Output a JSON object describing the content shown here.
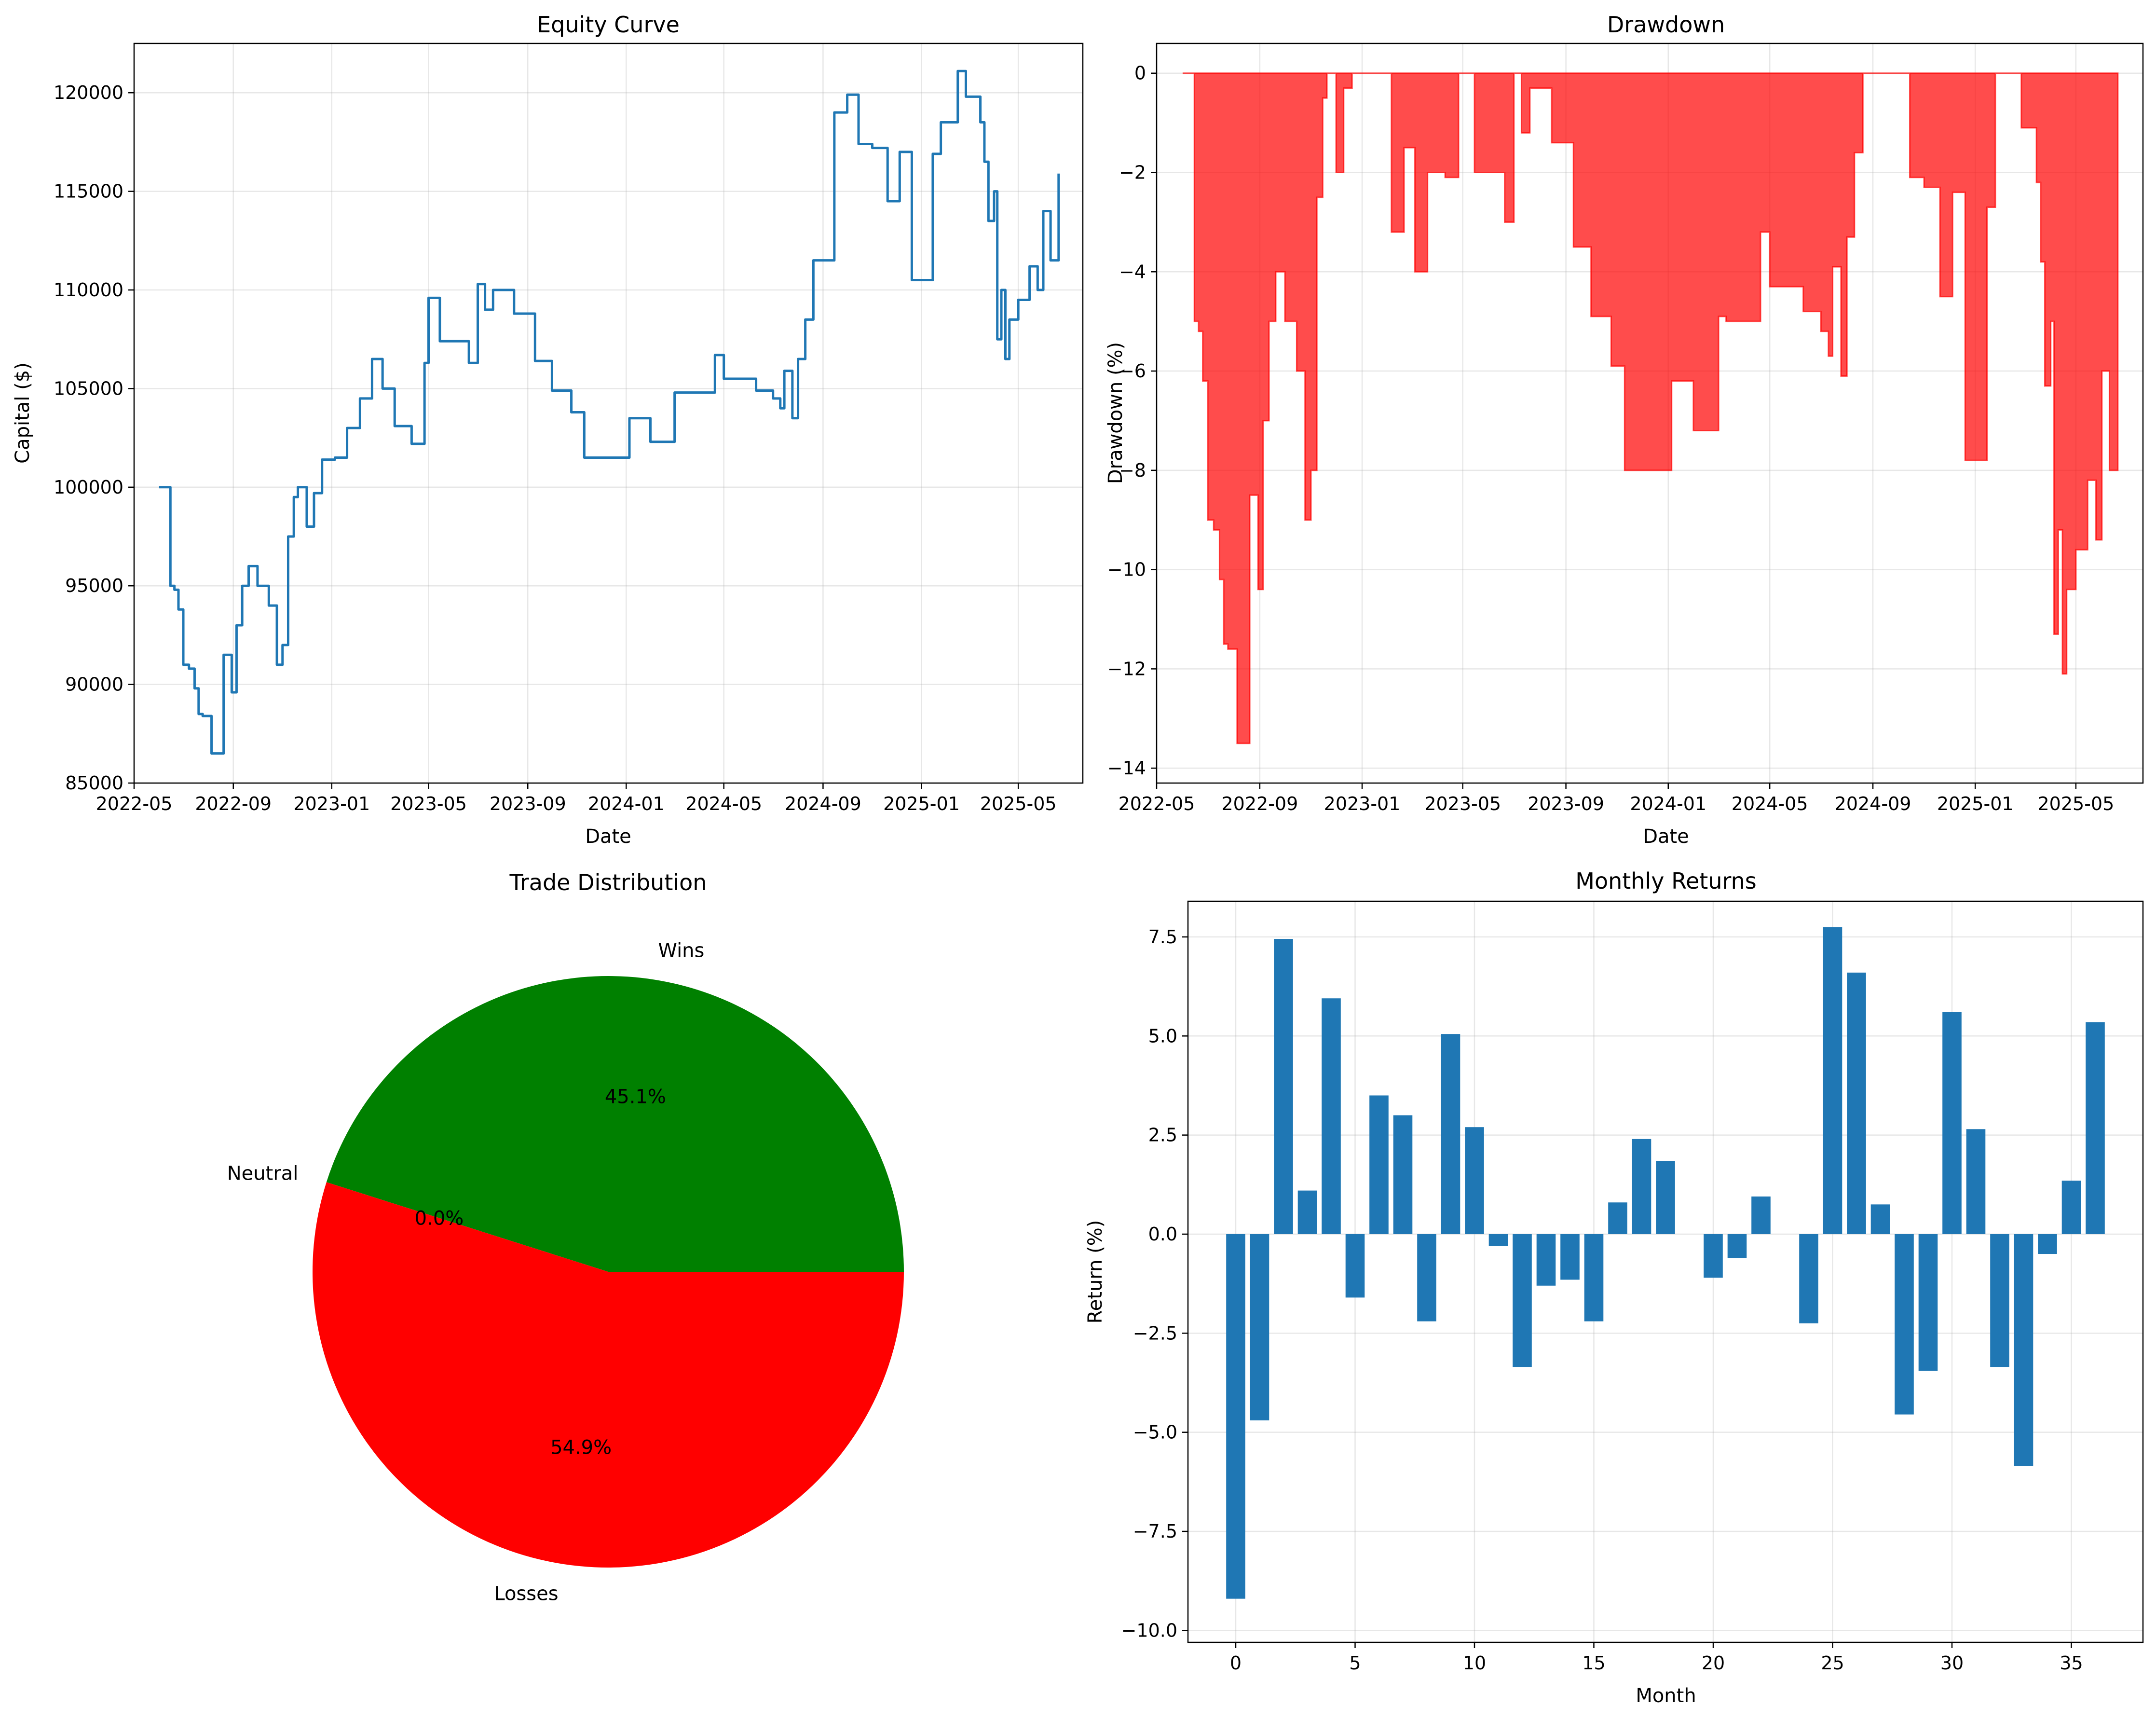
{
  "chart_data": [
    {
      "type": "line",
      "title": "Equity Curve",
      "xlabel": "Date",
      "ylabel": "Capital ($)",
      "xlim": [
        "2022-05-01",
        "2025-07-20"
      ],
      "ylim": [
        85000,
        122500
      ],
      "grid": true,
      "color": "#1f77b4",
      "x_ticks": [
        "2022-05",
        "2022-09",
        "2023-01",
        "2023-05",
        "2023-09",
        "2024-01",
        "2024-05",
        "2024-09",
        "2025-01",
        "2025-05"
      ],
      "y_ticks": [
        85000,
        90000,
        95000,
        100000,
        105000,
        110000,
        115000,
        120000
      ],
      "x": [
        "2022-06-01",
        "2022-06-14",
        "2022-06-15",
        "2022-06-20",
        "2022-06-25",
        "2022-07-01",
        "2022-07-08",
        "2022-07-15",
        "2022-07-20",
        "2022-07-25",
        "2022-08-05",
        "2022-08-20",
        "2022-08-26",
        "2022-08-30",
        "2022-09-05",
        "2022-09-12",
        "2022-09-20",
        "2022-10-01",
        "2022-10-15",
        "2022-10-25",
        "2022-11-01",
        "2022-11-08",
        "2022-11-15",
        "2022-11-20",
        "2022-12-01",
        "2022-12-10",
        "2022-12-20",
        "2023-01-05",
        "2023-01-20",
        "2023-02-05",
        "2023-02-20",
        "2023-03-05",
        "2023-03-20",
        "2023-04-10",
        "2023-04-26",
        "2023-05-01",
        "2023-05-15",
        "2023-06-01",
        "2023-06-20",
        "2023-07-01",
        "2023-07-10",
        "2023-07-20",
        "2023-08-15",
        "2023-09-10",
        "2023-10-01",
        "2023-10-25",
        "2023-11-10",
        "2024-01-05",
        "2024-01-31",
        "2024-03-01",
        "2024-03-10",
        "2024-04-01",
        "2024-04-20",
        "2024-05-01",
        "2024-06-01",
        "2024-06-10",
        "2024-07-01",
        "2024-07-10",
        "2024-07-15",
        "2024-07-20",
        "2024-07-25",
        "2024-08-01",
        "2024-08-10",
        "2024-08-20",
        "2024-09-15",
        "2024-10-01",
        "2024-10-15",
        "2024-11-01",
        "2024-11-20",
        "2024-12-05",
        "2024-12-20",
        "2025-01-05",
        "2025-01-15",
        "2025-01-25",
        "2025-02-15",
        "2025-02-25",
        "2025-03-05",
        "2025-03-15",
        "2025-03-20",
        "2025-03-25",
        "2025-04-01",
        "2025-04-05",
        "2025-04-10",
        "2025-04-15",
        "2025-04-20",
        "2025-05-01",
        "2025-05-15",
        "2025-05-25",
        "2025-06-01",
        "2025-06-10",
        "2025-06-20"
      ],
      "y": [
        100000,
        100000,
        95000,
        94800,
        93800,
        91000,
        90800,
        89800,
        88500,
        88400,
        86500,
        91500,
        91500,
        89600,
        93000,
        95000,
        96000,
        95000,
        94000,
        91000,
        92000,
        97500,
        99500,
        100000,
        98000,
        99700,
        101400,
        101500,
        103000,
        104500,
        106500,
        105000,
        103100,
        102200,
        106300,
        109600,
        107400,
        107400,
        106300,
        110300,
        109000,
        110000,
        108800,
        106400,
        104900,
        103800,
        101500,
        103500,
        102300,
        104800,
        104800,
        104800,
        106700,
        105500,
        105500,
        104900,
        104500,
        104000,
        105900,
        105900,
        103500,
        106500,
        108500,
        111500,
        119000,
        119900,
        117400,
        117200,
        114500,
        117000,
        110500,
        110500,
        116900,
        118500,
        121100,
        119800,
        119800,
        118500,
        116500,
        113500,
        115000,
        107500,
        110000,
        106500,
        108500,
        109500,
        111200,
        110000,
        114000,
        111500,
        115900
      ]
    },
    {
      "type": "area",
      "title": "Drawdown",
      "xlabel": "Date",
      "ylabel": "Drawdown (%)",
      "xlim": [
        "2022-05-01",
        "2025-07-20"
      ],
      "ylim": [
        -14.3,
        0.6
      ],
      "grid": true,
      "color": "#ff0000",
      "x_ticks": [
        "2022-05",
        "2022-09",
        "2023-01",
        "2023-05",
        "2023-09",
        "2024-01",
        "2024-05",
        "2024-09",
        "2025-01",
        "2025-05"
      ],
      "y_ticks": [
        0,
        -2,
        -4,
        -6,
        -8,
        -10,
        -12,
        -14
      ],
      "x": [
        "2022-06-01",
        "2022-06-14",
        "2022-06-15",
        "2022-06-20",
        "2022-06-25",
        "2022-07-01",
        "2022-07-08",
        "2022-07-15",
        "2022-07-20",
        "2022-07-25",
        "2022-08-05",
        "2022-08-20",
        "2022-08-26",
        "2022-08-30",
        "2022-09-05",
        "2022-09-12",
        "2022-09-20",
        "2022-10-01",
        "2022-10-15",
        "2022-10-25",
        "2022-11-01",
        "2022-11-08",
        "2022-11-15",
        "2022-11-20",
        "2022-12-01",
        "2022-12-10",
        "2022-12-20",
        "2023-01-05",
        "2023-01-20",
        "2023-02-05",
        "2023-02-20",
        "2023-03-05",
        "2023-03-20",
        "2023-04-10",
        "2023-04-26",
        "2023-05-01",
        "2023-05-15",
        "2023-06-01",
        "2023-06-20",
        "2023-07-01",
        "2023-07-10",
        "2023-07-20",
        "2023-08-15",
        "2023-09-10",
        "2023-10-01",
        "2023-10-25",
        "2023-11-10",
        "2024-01-05",
        "2024-01-31",
        "2024-03-01",
        "2024-03-10",
        "2024-04-01",
        "2024-04-20",
        "2024-05-01",
        "2024-06-01",
        "2024-06-10",
        "2024-07-01",
        "2024-07-10",
        "2024-07-15",
        "2024-07-20",
        "2024-07-25",
        "2024-08-01",
        "2024-08-10",
        "2024-08-20",
        "2024-09-15",
        "2024-10-01",
        "2024-10-15",
        "2024-11-01",
        "2024-11-20",
        "2024-12-05",
        "2024-12-20",
        "2025-01-05",
        "2025-01-15",
        "2025-01-25",
        "2025-02-15",
        "2025-02-25",
        "2025-03-05",
        "2025-03-15",
        "2025-03-20",
        "2025-03-25",
        "2025-04-01",
        "2025-04-05",
        "2025-04-10",
        "2025-04-15",
        "2025-04-20",
        "2025-05-01",
        "2025-05-15",
        "2025-05-25",
        "2025-06-01",
        "2025-06-10",
        "2025-06-20"
      ],
      "y": [
        0,
        0,
        -5.0,
        -5.2,
        -6.2,
        -9.0,
        -9.2,
        -10.2,
        -11.5,
        -11.6,
        -13.5,
        -8.5,
        -8.5,
        -10.4,
        -7.0,
        -5.0,
        -4.0,
        -5.0,
        -6.0,
        -9.0,
        -8.0,
        -2.5,
        -0.5,
        0,
        -2.0,
        -0.3,
        0,
        0,
        0,
        -3.2,
        -1.5,
        -4.0,
        -2.0,
        -2.1,
        0,
        0,
        -2.0,
        -2.0,
        -3.0,
        0,
        -1.2,
        -0.3,
        -1.4,
        -3.5,
        -4.9,
        -5.9,
        -8.0,
        -6.2,
        -7.2,
        -4.9,
        -5.0,
        -5.0,
        -3.2,
        -4.3,
        -4.3,
        -4.8,
        -5.2,
        -5.7,
        -3.9,
        -3.9,
        -6.1,
        -3.3,
        -1.6,
        0,
        0,
        0,
        -2.1,
        -2.3,
        -4.5,
        -2.4,
        -7.8,
        -7.8,
        -2.7,
        0,
        0,
        -1.1,
        -1.1,
        -2.2,
        -3.8,
        -6.3,
        -5.0,
        -11.3,
        -9.2,
        -12.1,
        -10.4,
        -9.6,
        -8.2,
        -9.4,
        -6.0,
        -8.0,
        -4.5
      ]
    },
    {
      "type": "pie",
      "title": "Trade Distribution",
      "labels": [
        "Wins",
        "Neutral",
        "Losses"
      ],
      "values": [
        45.1,
        0.0,
        54.9
      ],
      "value_labels": [
        "45.1%",
        "0.0%",
        "54.9%"
      ],
      "colors": [
        "#008000",
        "#0000ff",
        "#ff0000"
      ]
    },
    {
      "type": "bar",
      "title": "Monthly Returns",
      "xlabel": "Month",
      "ylabel": "Return (%)",
      "xlim": [
        -2,
        38
      ],
      "ylim": [
        -10.3,
        8.4
      ],
      "grid": true,
      "color": "#1f77b4",
      "x_ticks": [
        0,
        5,
        10,
        15,
        20,
        25,
        30,
        35
      ],
      "y_ticks": [
        7.5,
        5.0,
        2.5,
        0.0,
        -2.5,
        -5.0,
        -7.5,
        -10.0
      ],
      "categories": [
        0,
        1,
        2,
        3,
        4,
        5,
        6,
        7,
        8,
        9,
        10,
        11,
        12,
        13,
        14,
        15,
        16,
        17,
        18,
        19,
        20,
        21,
        22,
        23,
        24,
        25,
        26,
        27,
        28,
        29,
        30,
        31,
        32,
        33,
        34,
        35,
        36
      ],
      "values": [
        -9.2,
        -4.7,
        7.45,
        1.1,
        5.95,
        -1.6,
        3.5,
        3.0,
        -2.2,
        5.05,
        2.7,
        -0.3,
        -3.35,
        -1.3,
        -1.15,
        -2.2,
        0.8,
        2.4,
        1.85,
        0.0,
        -1.1,
        -0.6,
        0.95,
        0.0,
        -2.25,
        7.75,
        6.6,
        0.75,
        -4.55,
        -3.45,
        5.6,
        2.65,
        -3.35,
        -5.85,
        -0.5,
        1.35,
        5.35
      ]
    }
  ]
}
